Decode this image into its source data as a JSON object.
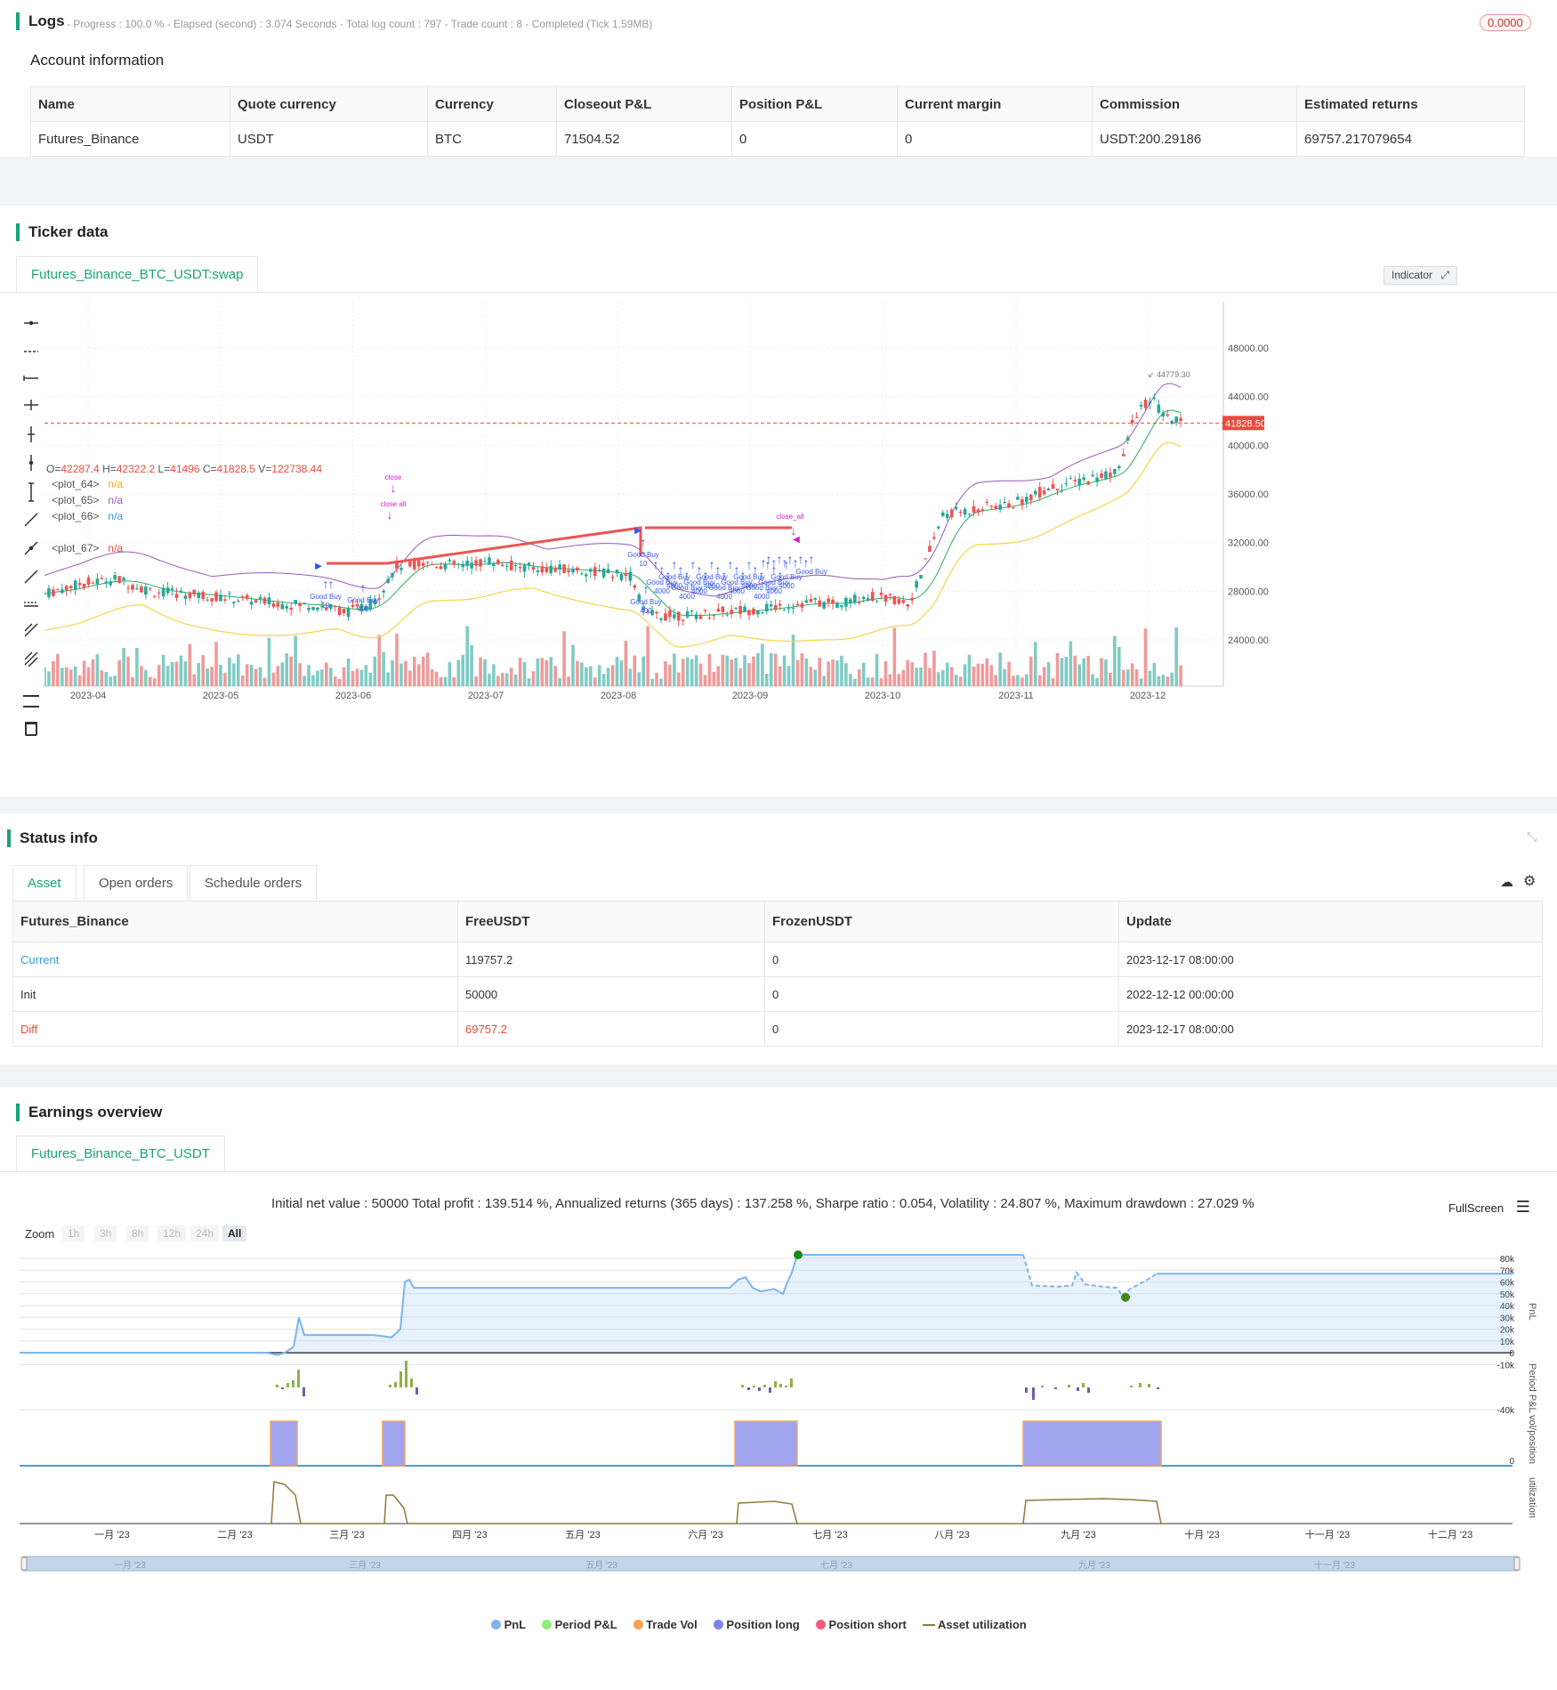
{
  "logs": {
    "title": "Logs",
    "summary": "- Progress : 100.0 % - Elapsed (second) : 3.074  Seconds - Total log count : 797 - Trade count : 8 - Completed (Tick 1.59MB)",
    "badge": "0.0000"
  },
  "account": {
    "title": "Account information",
    "headers": [
      "Name",
      "Quote currency",
      "Currency",
      "Closeout P&L",
      "Position P&L",
      "Current margin",
      "Commission",
      "Estimated returns"
    ],
    "row": [
      "Futures_Binance",
      "USDT",
      "BTC",
      "71504.52",
      "0",
      "0",
      "USDT:200.29186",
      "69757.217079654"
    ]
  },
  "ticker": {
    "title": "Ticker data",
    "tab": "Futures_Binance_BTC_USDT:swap",
    "ohlc": {
      "o_label": "O=",
      "o": "42287.4",
      "h_label": " H=",
      "h": "42322.2",
      "l_label": " L=",
      "l": "41496",
      "c_label": " C=",
      "c": "41828.5",
      "v_label": " V=",
      "v": "122738.44"
    },
    "plots": [
      {
        "name": "<plot_64>",
        "value": "n/a",
        "color": "#f5a623"
      },
      {
        "name": "<plot_65>",
        "value": "n/a",
        "color": "#9b59b6"
      },
      {
        "name": "<plot_66>",
        "value": "n/a",
        "color": "#3498db"
      },
      {
        "name": "<plot_67>",
        "value": "n/a",
        "color": "#e74c3c"
      }
    ],
    "indicator_btn": "Indicator",
    "price_ticks": [
      "48000.00",
      "44000.00",
      "40000.00",
      "36000.00",
      "32000.00",
      "28000.00",
      "24000.00"
    ],
    "last_price": "41828.50",
    "high_marker": "44779.30",
    "date_ticks": [
      "2023-04",
      "2023-05",
      "2023-06",
      "2023-07",
      "2023-08",
      "2023-09",
      "2023-10",
      "2023-11",
      "2023-12"
    ],
    "annotations": {
      "close": "close",
      "close_all": "close all",
      "close_all_2": "close_all",
      "good_buy": "Good Buy",
      "n10": "10",
      "n400": "400",
      "n4000": "4000"
    }
  },
  "status": {
    "title": "Status info",
    "tabs": [
      "Asset",
      "Open orders",
      "Schedule orders"
    ],
    "headers": [
      "Futures_Binance",
      "FreeUSDT",
      "FrozenUSDT",
      "Update"
    ],
    "rows": [
      [
        "Current",
        "119757.2",
        "0",
        "2023-12-17 08:00:00"
      ],
      [
        "Init",
        "50000",
        "0",
        "2022-12-12 00:00:00"
      ],
      [
        "Diff",
        "69757.2",
        "0",
        "2023-12-17 08:00:00"
      ]
    ]
  },
  "earnings": {
    "title": "Earnings overview",
    "tab": "Futures_Binance_BTC_USDT",
    "summary": "Initial net value : 50000 Total profit : 139.514 %, Annualized returns (365 days) : 137.258 %, Sharpe ratio : 0.054, Volatility : 24.807 %, Maximum drawdown : 27.029 %",
    "fullscreen": "FullScreen",
    "zoom_label": "Zoom",
    "zoom_buttons": [
      "1h",
      "3h",
      "8h",
      "12h",
      "24h",
      "All"
    ],
    "pnl_ticks": [
      "80k",
      "70k",
      "60k",
      "50k",
      "40k",
      "30k",
      "20k",
      "10k",
      "0",
      "-10k"
    ],
    "period_tick": "-40k",
    "pos_tick": "0",
    "axis_titles": [
      "PnL",
      "Period P&L",
      "vol/position",
      "utilization"
    ],
    "months": [
      "一月 '23",
      "二月 '23",
      "三月 '23",
      "四月 '23",
      "五月 '23",
      "六月 '23",
      "七月 '23",
      "八月 '23",
      "九月 '23",
      "十月 '23",
      "十一月 '23",
      "十二月 '23"
    ],
    "nav_months": [
      "一月 '23",
      "三月 '23",
      "五月 '23",
      "七月 '23",
      "九月 '23",
      "十一月 '23"
    ],
    "legend": [
      {
        "label": "PnL",
        "color": "#7cb5ec"
      },
      {
        "label": "Period P&L",
        "color": "#90ed7d"
      },
      {
        "label": "Trade Vol",
        "color": "#f7a35c"
      },
      {
        "label": "Position long",
        "color": "#8085e9"
      },
      {
        "label": "Position short",
        "color": "#f15c80"
      },
      {
        "label": "Asset utilization",
        "color": "#8d7a3a"
      }
    ]
  }
}
